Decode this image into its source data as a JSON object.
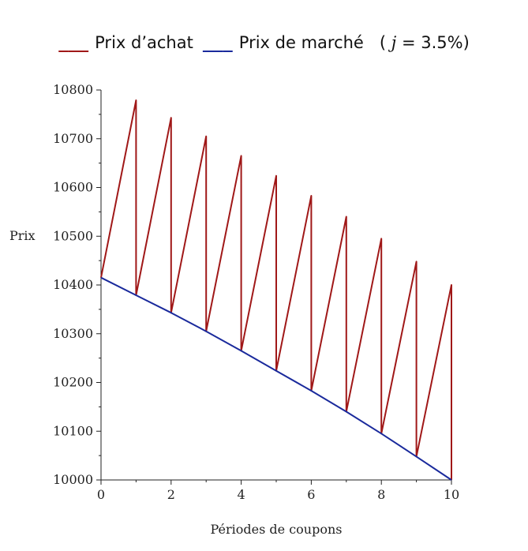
{
  "legend": {
    "purchase_marker": "___",
    "purchase_label": "Prix d’achat",
    "market_marker": "___",
    "market_label": "Prix de marché",
    "note_open": "(",
    "note_var": "j",
    "note_rest": "= 3.5%)"
  },
  "colors": {
    "purchase": "#a01818",
    "market": "#1a2a9c",
    "axis": "#222222"
  },
  "chart_data": {
    "type": "line",
    "xlabel": "Périodes de coupons",
    "ylabel": "Prix",
    "xlim": [
      0,
      10
    ],
    "ylim": [
      10000,
      10800
    ],
    "x_ticks": [
      0,
      2,
      4,
      6,
      8,
      10
    ],
    "y_ticks": [
      10000,
      10100,
      10200,
      10300,
      10400,
      10500,
      10600,
      10700,
      10800
    ],
    "grid": false,
    "series": [
      {
        "name": "Prix d’achat",
        "x": [
          0,
          1,
          1,
          2,
          2,
          3,
          3,
          4,
          4,
          5,
          5,
          6,
          6,
          7,
          7,
          8,
          8,
          9,
          9,
          10,
          10
        ],
        "y": [
          10415,
          10779,
          10379,
          10743,
          10343,
          10705,
          10305,
          10665,
          10265,
          10624,
          10224,
          10583,
          10183,
          10540,
          10140,
          10495,
          10095,
          10448,
          10048,
          10400,
          10000
        ]
      },
      {
        "name": "Prix de marché",
        "x": [
          0,
          1,
          2,
          3,
          4,
          5,
          6,
          7,
          8,
          9,
          10
        ],
        "y": [
          10415,
          10379,
          10343,
          10305,
          10265,
          10224,
          10183,
          10140,
          10095,
          10048,
          10000
        ]
      }
    ]
  }
}
